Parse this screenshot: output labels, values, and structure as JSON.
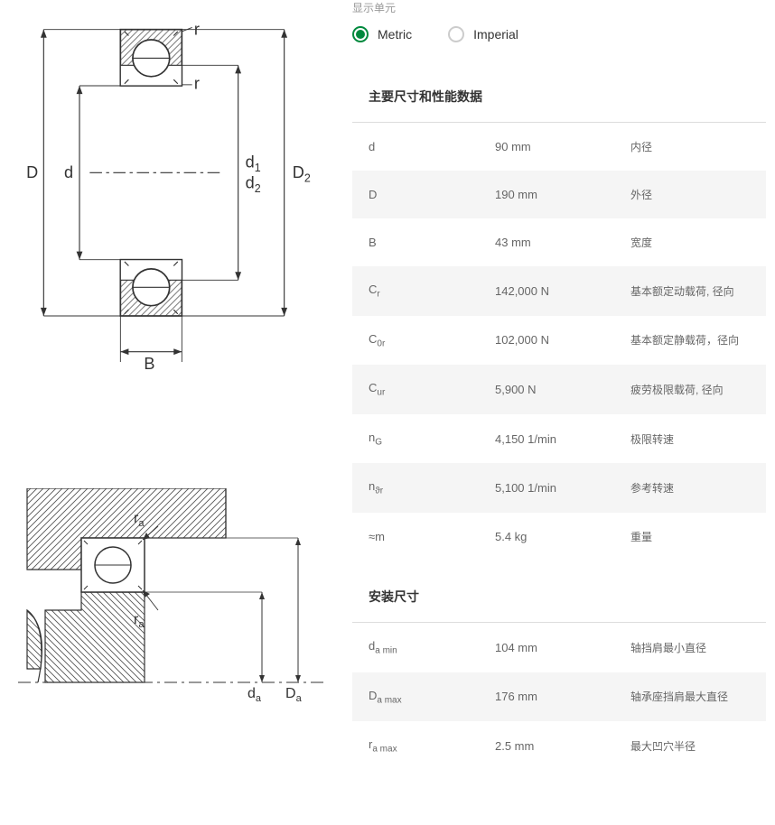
{
  "units": {
    "label": "显示单元",
    "metric": "Metric",
    "imperial": "Imperial",
    "selected": "metric"
  },
  "sections": {
    "main": "主要尺寸和性能数据",
    "mount": "安装尺寸"
  },
  "mainData": [
    {
      "sym": "d",
      "sub": "",
      "val": "90 mm",
      "desc": "内径"
    },
    {
      "sym": "D",
      "sub": "",
      "val": "190 mm",
      "desc": "外径"
    },
    {
      "sym": "B",
      "sub": "",
      "val": "43 mm",
      "desc": "宽度"
    },
    {
      "sym": "C",
      "sub": "r",
      "val": "142,000 N",
      "desc": "基本额定动载荷, 径向"
    },
    {
      "sym": "C",
      "sub": "0r",
      "val": "102,000 N",
      "desc": "基本额定静载荷，径向"
    },
    {
      "sym": "C",
      "sub": "ur",
      "val": "5,900 N",
      "desc": "疲劳极限载荷, 径向"
    },
    {
      "sym": "n",
      "sub": "G",
      "val": "4,150 1/min",
      "desc": "极限转速"
    },
    {
      "sym": "n",
      "sub": "ϑr",
      "val": "5,100 1/min",
      "desc": "参考转速"
    },
    {
      "sym": "≈m",
      "sub": "",
      "val": "5.4 kg",
      "desc": "重量"
    }
  ],
  "mountData": [
    {
      "sym": "d",
      "sub": "a min",
      "val": "104 mm",
      "desc": "轴挡肩最小直径"
    },
    {
      "sym": "D",
      "sub": "a max",
      "val": "176 mm",
      "desc": "轴承座挡肩最大直径"
    },
    {
      "sym": "r",
      "sub": "a max",
      "val": "2.5 mm",
      "desc": "最大凹穴半径"
    }
  ],
  "diagram1": {
    "labels": {
      "D": "D",
      "d": "d",
      "d1": "d",
      "d1sub": "1",
      "d2": "d",
      "d2sub": "2",
      "D2": "D",
      "D2sub": "2",
      "B": "B",
      "r": "r"
    },
    "colors": {
      "stroke": "#333333",
      "hatch": "#666666",
      "fill_light": "#ffffff",
      "fill_gray": "#dddddd"
    }
  },
  "diagram2": {
    "labels": {
      "ra": "r",
      "rasub": "a",
      "da": "d",
      "dasub": "a",
      "Da": "D",
      "Dasub": "a"
    }
  }
}
